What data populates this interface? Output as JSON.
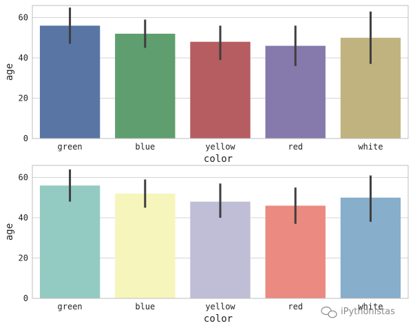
{
  "watermark": {
    "text": "iPythonistas",
    "icon": "wechat-icon"
  },
  "chart_data": [
    {
      "type": "bar",
      "xlabel": "color",
      "ylabel": "age",
      "categories": [
        "green",
        "blue",
        "yellow",
        "red",
        "white"
      ],
      "values": [
        56,
        52,
        48,
        46,
        50
      ],
      "error_low": [
        47,
        45,
        39,
        36,
        37
      ],
      "error_high": [
        65,
        59,
        56,
        56,
        63
      ],
      "bar_colors": [
        "#5875a4",
        "#5f9e6e",
        "#b55d60",
        "#857aab",
        "#c1b37f"
      ],
      "ylim": [
        0,
        66
      ],
      "yticks": [
        0,
        20,
        40,
        60
      ],
      "grid": true
    },
    {
      "type": "bar",
      "xlabel": "color",
      "ylabel": "age",
      "categories": [
        "green",
        "blue",
        "yellow",
        "red",
        "white"
      ],
      "values": [
        56,
        52,
        48,
        46,
        50
      ],
      "error_low": [
        48,
        45,
        40,
        37,
        38
      ],
      "error_high": [
        64,
        59,
        57,
        55,
        61
      ],
      "bar_colors": [
        "#93cbc2",
        "#f6f5bb",
        "#c0bed6",
        "#eb8a80",
        "#87aecb"
      ],
      "ylim": [
        0,
        66
      ],
      "yticks": [
        0,
        20,
        40,
        60
      ],
      "grid": true
    }
  ]
}
